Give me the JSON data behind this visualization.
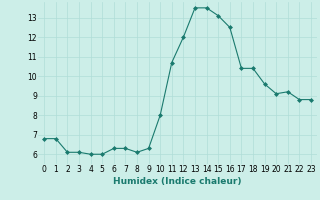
{
  "x": [
    0,
    1,
    2,
    3,
    4,
    5,
    6,
    7,
    8,
    9,
    10,
    11,
    12,
    13,
    14,
    15,
    16,
    17,
    18,
    19,
    20,
    21,
    22,
    23
  ],
  "y": [
    6.8,
    6.8,
    6.1,
    6.1,
    6.0,
    6.0,
    6.3,
    6.3,
    6.1,
    6.3,
    8.0,
    10.7,
    12.0,
    13.5,
    13.5,
    13.1,
    12.5,
    10.4,
    10.4,
    9.6,
    9.1,
    9.2,
    8.8,
    8.8
  ],
  "line_color": "#1a7a6e",
  "marker": "D",
  "marker_size": 2,
  "xlabel": "Humidex (Indice chaleur)",
  "xlim": [
    -0.5,
    23.5
  ],
  "ylim": [
    5.5,
    13.8
  ],
  "yticks": [
    6,
    7,
    8,
    9,
    10,
    11,
    12,
    13
  ],
  "xticks": [
    0,
    1,
    2,
    3,
    4,
    5,
    6,
    7,
    8,
    9,
    10,
    11,
    12,
    13,
    14,
    15,
    16,
    17,
    18,
    19,
    20,
    21,
    22,
    23
  ],
  "background_color": "#cceee8",
  "grid_color": "#aaddda",
  "tick_fontsize": 5.5,
  "xlabel_fontsize": 6.5
}
